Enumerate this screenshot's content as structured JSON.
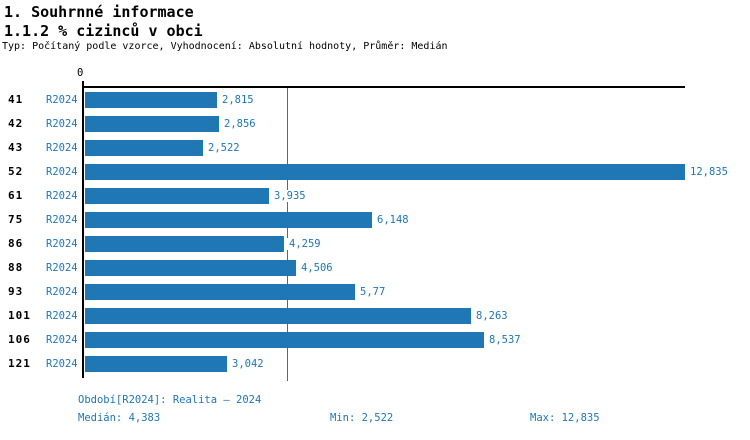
{
  "header": {
    "section_title": "1. Souhrnné informace",
    "chart_title": "1.1.2 % cizinců v obci",
    "subtitle": "Typ: Počítaný podle vzorce, Vyhodnocení: Absolutní hodnoty, Průměr: Medián"
  },
  "axis": {
    "zero_label": "0"
  },
  "chart_data": {
    "type": "bar",
    "orientation": "horizontal",
    "title": "1.1.2 % cizinců v obci",
    "categories": [
      "41",
      "42",
      "43",
      "52",
      "61",
      "75",
      "86",
      "88",
      "93",
      "101",
      "106",
      "121"
    ],
    "series": [
      {
        "name": "R2024",
        "values": [
          2.815,
          2.856,
          2.522,
          12.835,
          3.935,
          6.148,
          4.259,
          4.506,
          5.77,
          8.263,
          8.537,
          3.042
        ],
        "labels": [
          "2,815",
          "2,856",
          "2,522",
          "12,835",
          "3,935",
          "6,148",
          "4,259",
          "4,506",
          "5,77",
          "8,263",
          "8,537",
          "3,042"
        ]
      }
    ],
    "xlim": [
      0,
      12.835
    ],
    "median_value": 4.383,
    "grid": false,
    "legend_position": "none",
    "median_line": true
  },
  "footer": {
    "period": "Období[R2024]: Realita – 2024",
    "median": "Medián: 4,383",
    "min": "Min: 2,522",
    "max": "Max: 12,835"
  },
  "colors": {
    "bar": "#1f77b4",
    "accent_text": "#1f77b4",
    "axis": "#000000"
  }
}
